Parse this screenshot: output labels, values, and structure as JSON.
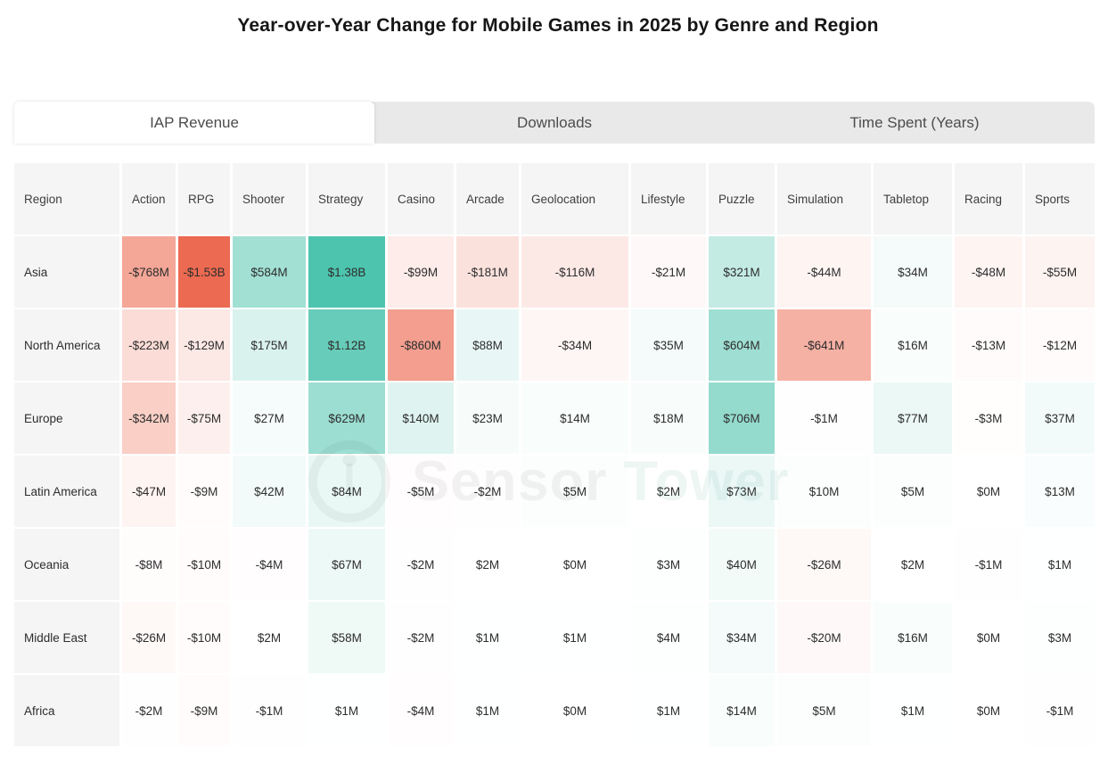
{
  "tabs": [
    {
      "label": "IAP Revenue",
      "active": true
    },
    {
      "label": "Downloads",
      "active": false
    },
    {
      "label": "Time Spent (Years)",
      "active": false
    }
  ],
  "watermark": {
    "first": "Sensor",
    "second": "Tower"
  },
  "chart_data": {
    "type": "heatmap",
    "title": "Year-over-Year Change for Mobile Games in 2025 by Genre and Region",
    "active_metric": "IAP Revenue",
    "corner_header": "Region",
    "columns": [
      "Action",
      "RPG",
      "Shooter",
      "Strategy",
      "Casino",
      "Arcade",
      "Geolocation",
      "Lifestyle",
      "Puzzle",
      "Simulation",
      "Tabletop",
      "Racing",
      "Sports"
    ],
    "rows": [
      "Asia",
      "North America",
      "Europe",
      "Latin America",
      "Oceania",
      "Middle East",
      "Africa"
    ],
    "values_display": [
      [
        "-$768M",
        "-$1.53B",
        "$584M",
        "$1.38B",
        "-$99M",
        "-$181M",
        "-$116M",
        "-$21M",
        "$321M",
        "-$44M",
        "$34M",
        "-$48M",
        "-$55M"
      ],
      [
        "-$223M",
        "-$129M",
        "$175M",
        "$1.12B",
        "-$860M",
        "$88M",
        "-$34M",
        "$35M",
        "$604M",
        "-$641M",
        "$16M",
        "-$13M",
        "-$12M"
      ],
      [
        "-$342M",
        "-$75M",
        "$27M",
        "$629M",
        "$140M",
        "$23M",
        "$14M",
        "$18M",
        "$706M",
        "-$1M",
        "$77M",
        "-$3M",
        "$37M"
      ],
      [
        "-$47M",
        "-$9M",
        "$42M",
        "$84M",
        "-$5M",
        "-$2M",
        "$5M",
        "$2M",
        "$73M",
        "$10M",
        "$5M",
        "$0M",
        "$13M"
      ],
      [
        "-$8M",
        "-$10M",
        "-$4M",
        "$67M",
        "-$2M",
        "$2M",
        "$0M",
        "$3M",
        "$40M",
        "-$26M",
        "$2M",
        "-$1M",
        "$1M"
      ],
      [
        "-$26M",
        "-$10M",
        "$2M",
        "$58M",
        "-$2M",
        "$1M",
        "$1M",
        "$4M",
        "$34M",
        "-$20M",
        "$16M",
        "$0M",
        "$3M"
      ],
      [
        "-$2M",
        "-$9M",
        "-$1M",
        "$1M",
        "-$4M",
        "$1M",
        "$0M",
        "$1M",
        "$14M",
        "$5M",
        "$1M",
        "$0M",
        "-$1M"
      ]
    ],
    "values_millions": [
      [
        -768,
        -1530,
        584,
        1380,
        -99,
        -181,
        -116,
        -21,
        321,
        -44,
        34,
        -48,
        -55
      ],
      [
        -223,
        -129,
        175,
        1120,
        -860,
        88,
        -34,
        35,
        604,
        -641,
        16,
        -13,
        -12
      ],
      [
        -342,
        -75,
        27,
        629,
        140,
        23,
        14,
        18,
        706,
        -1,
        77,
        -3,
        37
      ],
      [
        -47,
        -9,
        42,
        84,
        -5,
        -2,
        5,
        2,
        73,
        10,
        5,
        0,
        13
      ],
      [
        -8,
        -10,
        -4,
        67,
        -2,
        2,
        0,
        3,
        40,
        -26,
        2,
        -1,
        1
      ],
      [
        -26,
        -10,
        2,
        58,
        -2,
        1,
        1,
        4,
        34,
        -20,
        16,
        0,
        3
      ],
      [
        -2,
        -9,
        -1,
        1,
        -4,
        1,
        0,
        1,
        14,
        5,
        1,
        0,
        -1
      ]
    ],
    "unit": "USD",
    "colorscale": {
      "negative_end": "#ec6a51",
      "midpoint": "#ffffff",
      "positive_end": "#3fbfa7",
      "domain_max_millions": 1530,
      "scale_exponent": 0.75,
      "header_bg": "#f5f5f5"
    },
    "legend_position": "none",
    "grid": "white-gaps"
  }
}
